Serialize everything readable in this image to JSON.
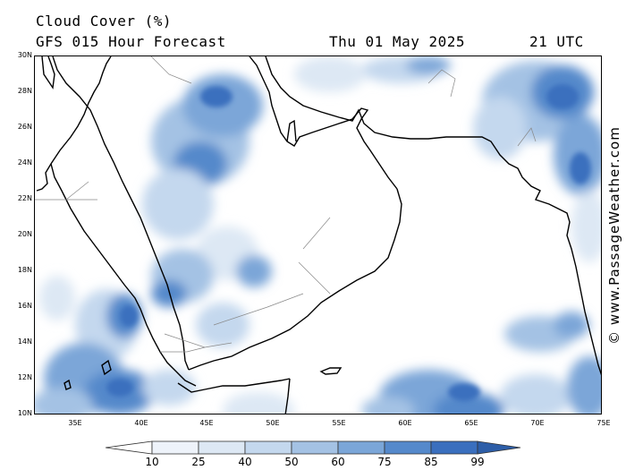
{
  "header": {
    "title": "Cloud Cover (%)",
    "subtitle": "GFS 015 Hour Forecast",
    "date": "Thu 01 May 2025",
    "time": "21 UTC"
  },
  "watermark": "© www.PassageWeather.com",
  "map": {
    "lat_labels": [
      "30N",
      "28N",
      "26N",
      "24N",
      "22N",
      "20N",
      "18N",
      "16N",
      "14N",
      "12N",
      "10N"
    ],
    "lon_labels": [
      "35E",
      "40E",
      "45E",
      "50E",
      "55E",
      "60E",
      "65E",
      "70E",
      "75E"
    ],
    "lat_range": [
      10,
      30
    ],
    "lon_range": [
      32,
      75
    ]
  },
  "legend": {
    "labels": [
      "10",
      "25",
      "40",
      "50",
      "60",
      "75",
      "85",
      "99"
    ],
    "colors": [
      "#ffffff",
      "#eef3fa",
      "#dde8f4",
      "#c4d8ee",
      "#a4c2e4",
      "#7ba6d8",
      "#5589cb",
      "#3a6fbe",
      "#2d5ea8"
    ]
  }
}
